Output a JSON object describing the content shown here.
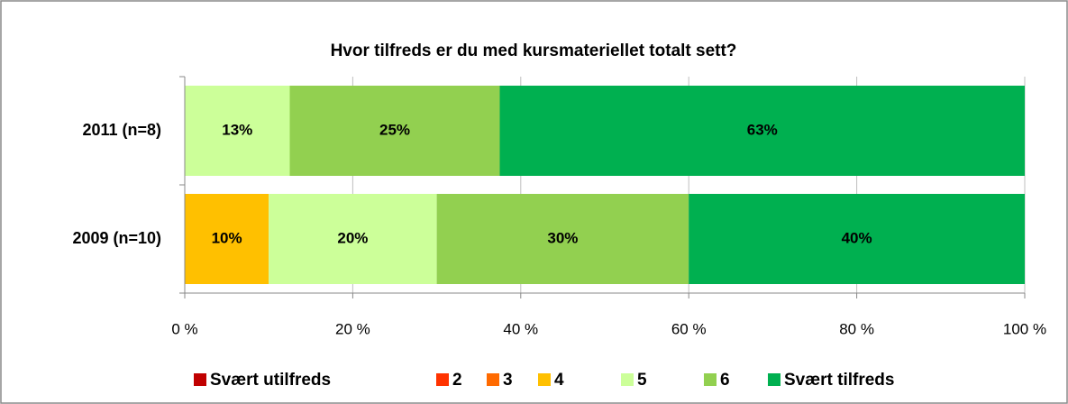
{
  "chart_data": {
    "type": "stacked_barh",
    "title": "Hvor tilfreds er du med kursmateriellet totalt sett?",
    "categories": [
      "2011 (n=8)",
      "2009 (n=10)"
    ],
    "series": [
      {
        "name": "Svært utilfreds",
        "color": "#c00000",
        "values": [
          0,
          0
        ],
        "value_labels": [
          null,
          null
        ]
      },
      {
        "name": "2",
        "color": "#ff3300",
        "values": [
          0,
          0
        ],
        "value_labels": [
          null,
          null
        ]
      },
      {
        "name": "3",
        "color": "#ff6a00",
        "values": [
          0,
          0
        ],
        "value_labels": [
          null,
          null
        ]
      },
      {
        "name": "4",
        "color": "#ffc000",
        "values": [
          0,
          10
        ],
        "value_labels": [
          null,
          "10%"
        ]
      },
      {
        "name": "5",
        "color": "#ccff99",
        "values": [
          12.5,
          20
        ],
        "value_labels": [
          "13%",
          "20%"
        ]
      },
      {
        "name": "6",
        "color": "#92d050",
        "values": [
          25,
          30
        ],
        "value_labels": [
          "25%",
          "30%"
        ]
      },
      {
        "name": "Svært tilfreds",
        "color": "#00b050",
        "values": [
          62.5,
          40
        ],
        "value_labels": [
          "63%",
          "40%"
        ]
      }
    ],
    "xlim": [
      0,
      100
    ],
    "xticks": [
      {
        "value": 0,
        "label": "0 %"
      },
      {
        "value": 20,
        "label": "20 %"
      },
      {
        "value": 40,
        "label": "40 %"
      },
      {
        "value": 60,
        "label": "60 %"
      },
      {
        "value": 80,
        "label": "80 %"
      },
      {
        "value": 100,
        "label": "100 %"
      }
    ],
    "grid": true,
    "legend": "bottom"
  }
}
